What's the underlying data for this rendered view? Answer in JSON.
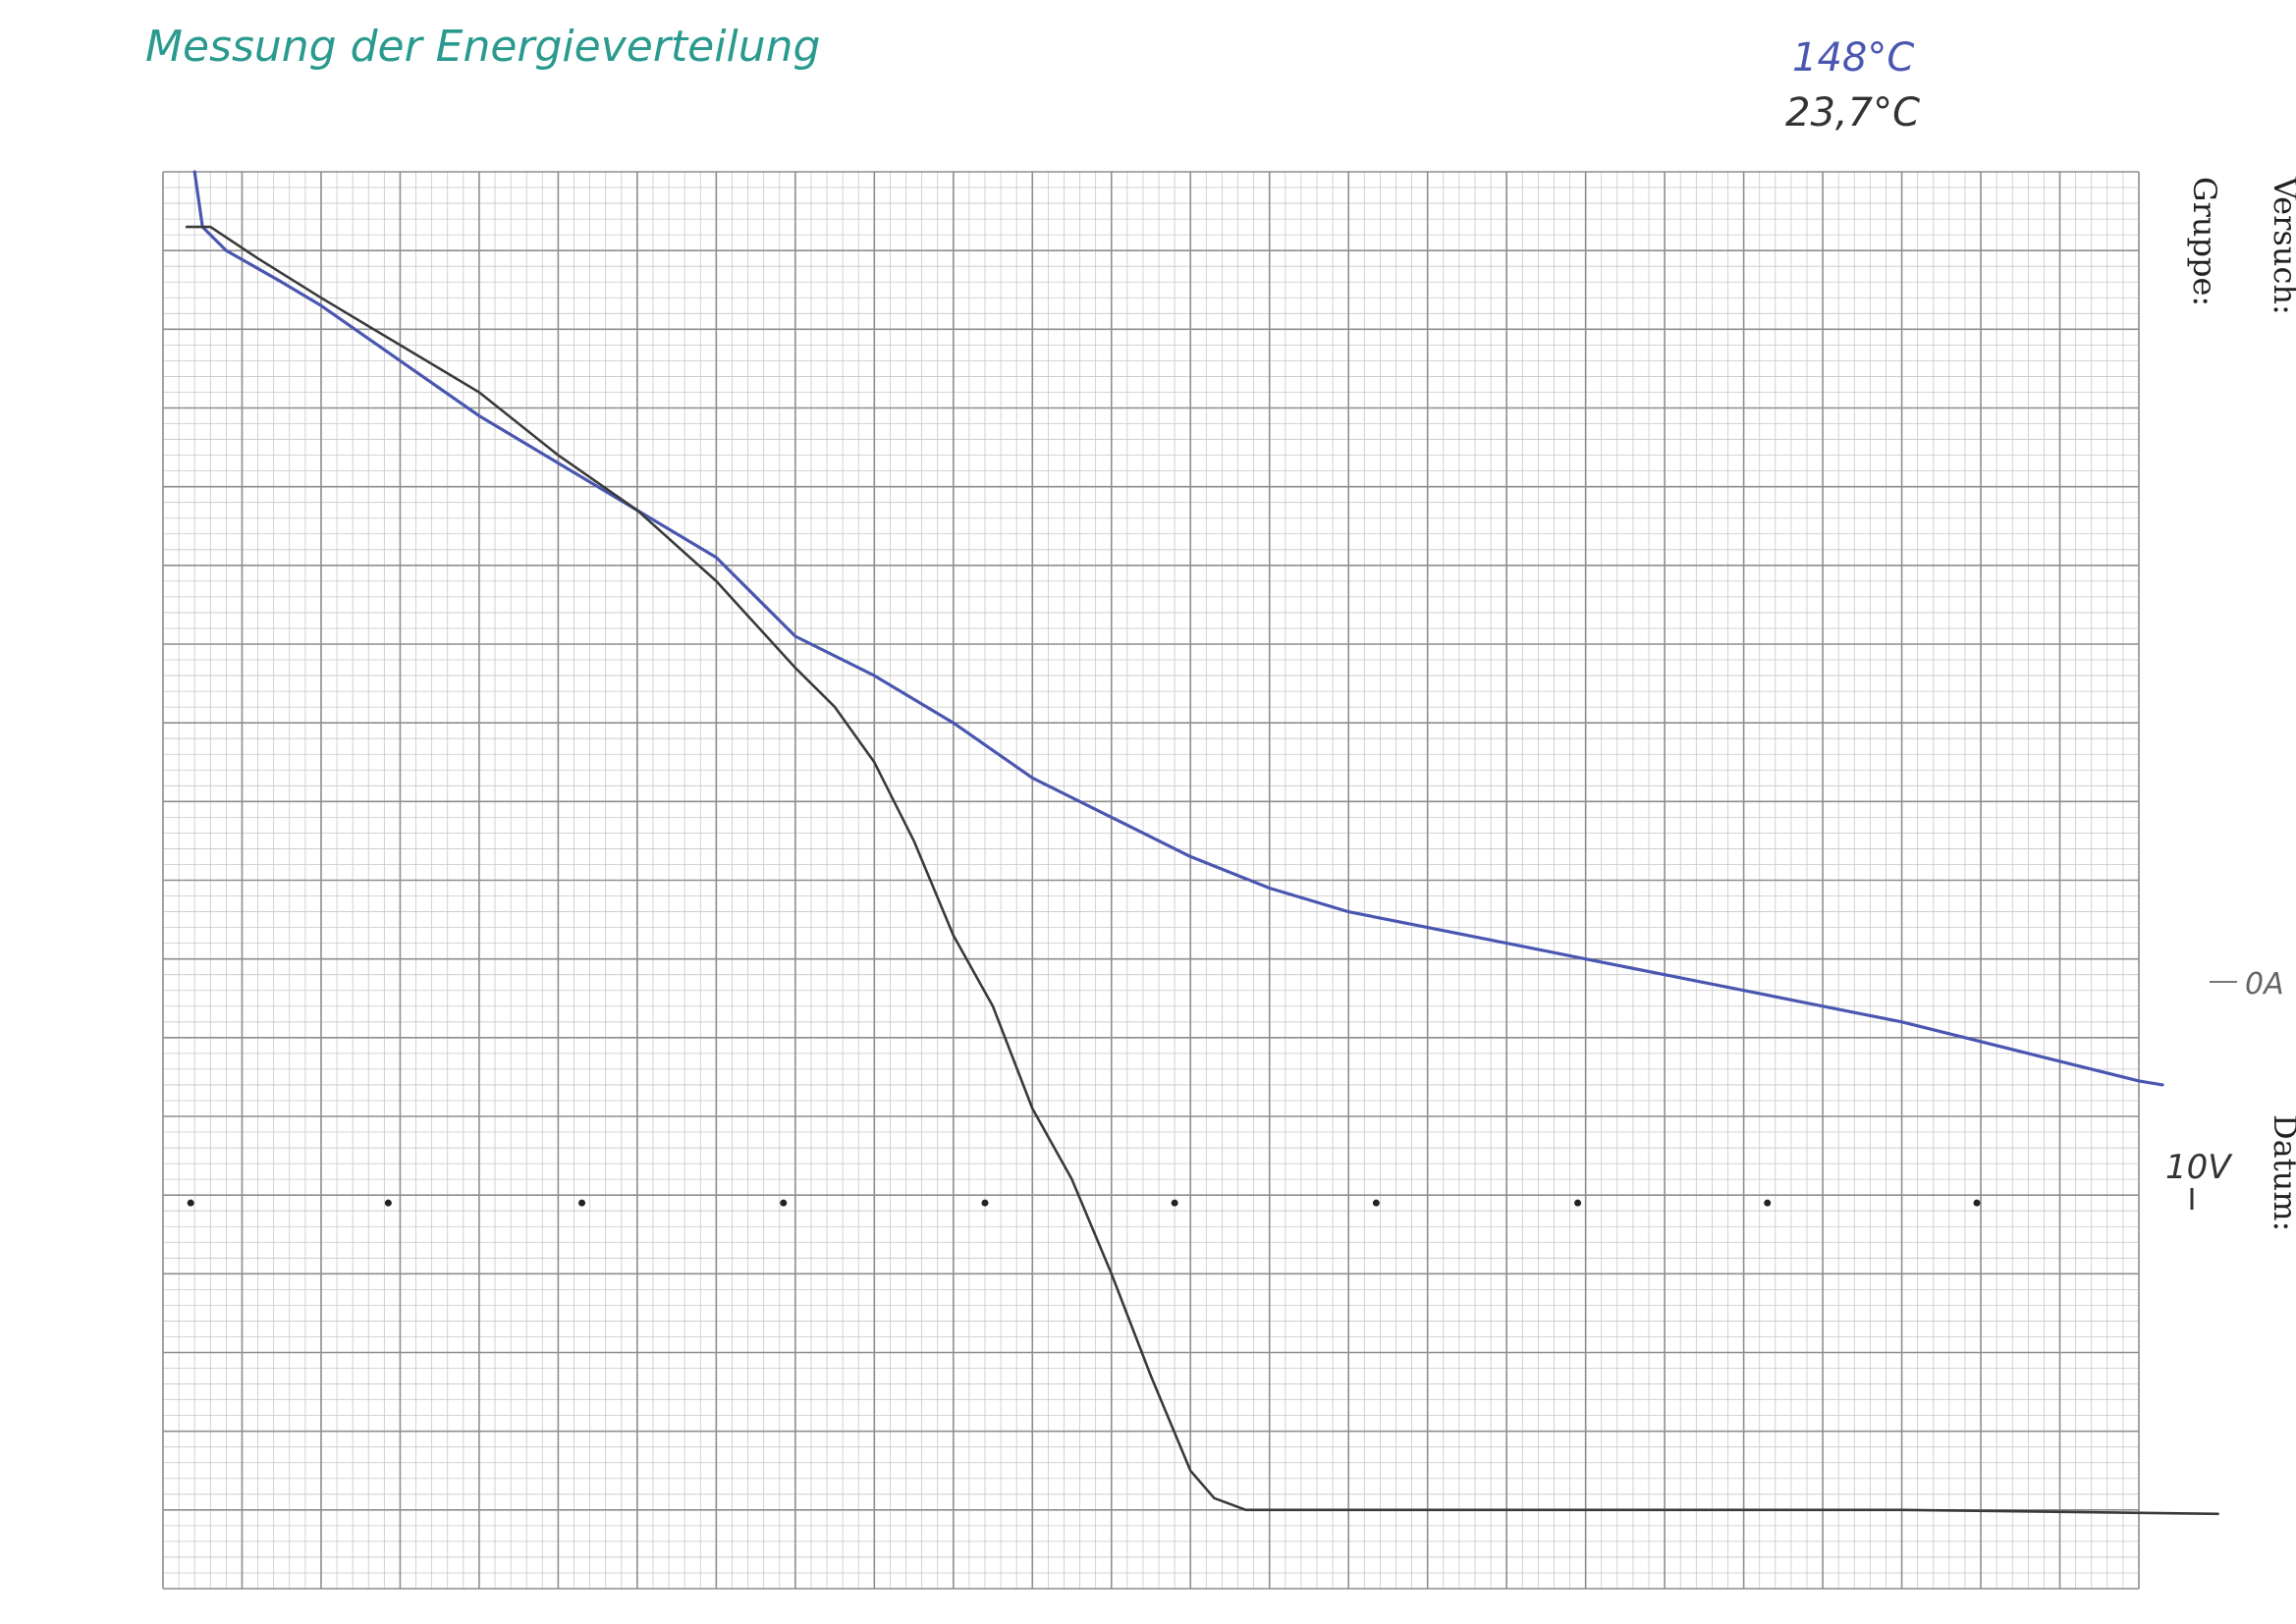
{
  "chart_data": {
    "type": "line",
    "title": "Messung der Energieverteilung",
    "annotations": {
      "temp_blue": "148°C",
      "temp_black": "23,7°C",
      "zero_current": "0A",
      "voltage_mark": "10V"
    },
    "sheet_labels": {
      "versuch": "Versuch:",
      "gruppe": "Gruppe:",
      "datum": "Datum:"
    },
    "grid": true,
    "x_range": [
      0,
      25
    ],
    "y_range": [
      0,
      18
    ],
    "series": [
      {
        "name": "148°C",
        "color": "#4a57b0",
        "points": [
          [
            0.4,
            18.0
          ],
          [
            0.5,
            17.3
          ],
          [
            0.8,
            17.0
          ],
          [
            1.5,
            16.6
          ],
          [
            2,
            16.3
          ],
          [
            3,
            15.6
          ],
          [
            4,
            14.9
          ],
          [
            5,
            14.3
          ],
          [
            6,
            13.7
          ],
          [
            7,
            13.1
          ],
          [
            8,
            12.1
          ],
          [
            9,
            11.6
          ],
          [
            10,
            11.0
          ],
          [
            11,
            10.3
          ],
          [
            12,
            9.8
          ],
          [
            13,
            9.3
          ],
          [
            14,
            8.9
          ],
          [
            15,
            8.6
          ],
          [
            16,
            8.4
          ],
          [
            17,
            8.2
          ],
          [
            18,
            8.0
          ],
          [
            19,
            7.8
          ],
          [
            20,
            7.6
          ],
          [
            21,
            7.4
          ],
          [
            22,
            7.2
          ],
          [
            23,
            6.95
          ],
          [
            24,
            6.7
          ],
          [
            25,
            6.45
          ],
          [
            25.3,
            6.4
          ]
        ]
      },
      {
        "name": "23,7°C",
        "color": "#3a3a3a",
        "points": [
          [
            0.3,
            17.3
          ],
          [
            0.6,
            17.3
          ],
          [
            1.2,
            16.9
          ],
          [
            2,
            16.4
          ],
          [
            3,
            15.8
          ],
          [
            4,
            15.2
          ],
          [
            5,
            14.4
          ],
          [
            6,
            13.7
          ],
          [
            7,
            12.8
          ],
          [
            8,
            11.7
          ],
          [
            8.5,
            11.2
          ],
          [
            9,
            10.5
          ],
          [
            9.5,
            9.5
          ],
          [
            10,
            8.3
          ],
          [
            10.5,
            7.4
          ],
          [
            11,
            6.1
          ],
          [
            11.5,
            5.2
          ],
          [
            12,
            4.0
          ],
          [
            12.5,
            2.7
          ],
          [
            13,
            1.5
          ],
          [
            13.3,
            1.15
          ],
          [
            13.7,
            1.0
          ],
          [
            14.5,
            1.0
          ],
          [
            18,
            1.0
          ],
          [
            22,
            1.0
          ],
          [
            26,
            0.95
          ]
        ]
      }
    ]
  },
  "colors": {
    "title": "#2a9a8e",
    "temp_blue": "#4a57b0",
    "temp_black": "#333333",
    "grid_major": "#8e8e8e",
    "grid_minor": "#c7c7c7"
  }
}
